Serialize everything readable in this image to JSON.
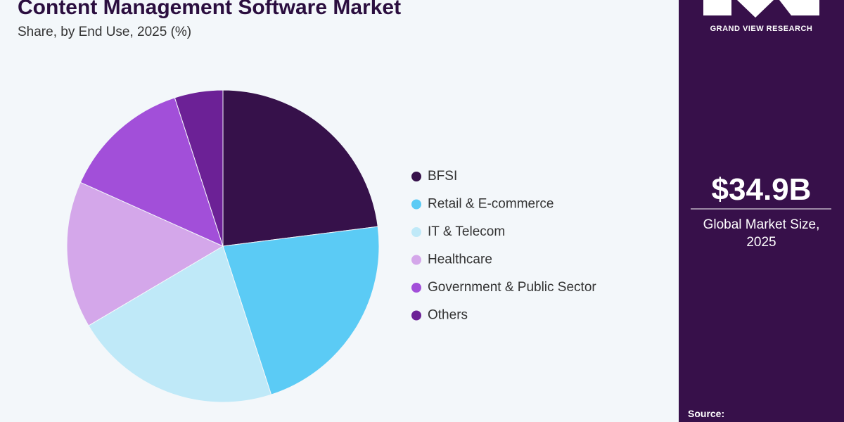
{
  "chart_data": {
    "type": "pie",
    "title": "Content Management Software Market",
    "subtitle": "Share, by End Use, 2025 (%)",
    "categories": [
      "BFSI",
      "Retail & E-commerce",
      "IT & Telecom",
      "Healthcare",
      "Government & Public Sector",
      "Others"
    ],
    "values": [
      23,
      22,
      21.5,
      15.2,
      13.3,
      5.0
    ],
    "colors": [
      "#36114a",
      "#5bcbf5",
      "#bfe9f8",
      "#d4a7ea",
      "#a24fd9",
      "#6c2196"
    ]
  },
  "sidebar": {
    "brand": "GRAND VIEW RESEARCH",
    "market_size": "$34.9B",
    "market_size_label": "Global Market Size, 2025",
    "source_label": "Source:"
  }
}
